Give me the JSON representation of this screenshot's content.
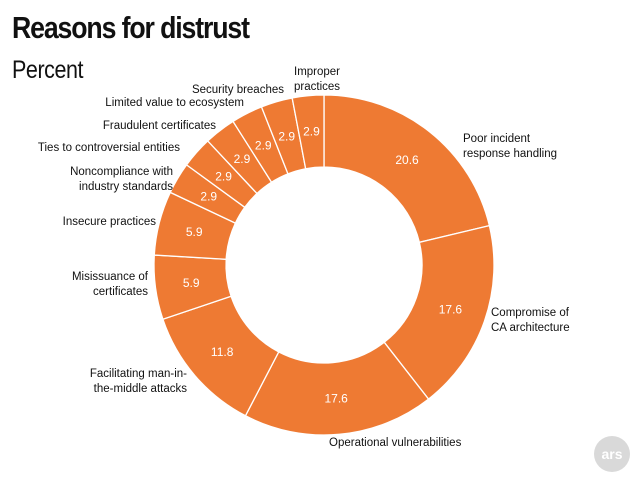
{
  "chart_data": {
    "type": "pie",
    "title": "Reasons for distrust",
    "subtitle": "Percent",
    "slices": [
      {
        "label": "Poor incident\nresponse handling",
        "value": 20.6
      },
      {
        "label": "Compromise of\nCA architecture",
        "value": 17.6
      },
      {
        "label": "Operational vulnerabilities",
        "value": 17.6
      },
      {
        "label": "Facilitating man-in-\nthe-middle attacks",
        "value": 11.8
      },
      {
        "label": "Misissuance of\ncertificates",
        "value": 5.9
      },
      {
        "label": "Insecure practices",
        "value": 5.9
      },
      {
        "label": "Noncompliance with\nindustry standards",
        "value": 2.9
      },
      {
        "label": "Ties to controversial entities",
        "value": 2.9
      },
      {
        "label": "Fraudulent certificates",
        "value": 2.9
      },
      {
        "label": "Limited value to ecosystem",
        "value": 2.9
      },
      {
        "label": "Security breaches",
        "value": 2.9
      },
      {
        "label": "Improper\npractices",
        "value": 2.9
      }
    ],
    "colors": {
      "slice": "#ee7a33",
      "separator": "#ffffff",
      "text": "#111111",
      "value_text": "#ffffff"
    }
  },
  "brand": {
    "logo_text": "ars"
  }
}
